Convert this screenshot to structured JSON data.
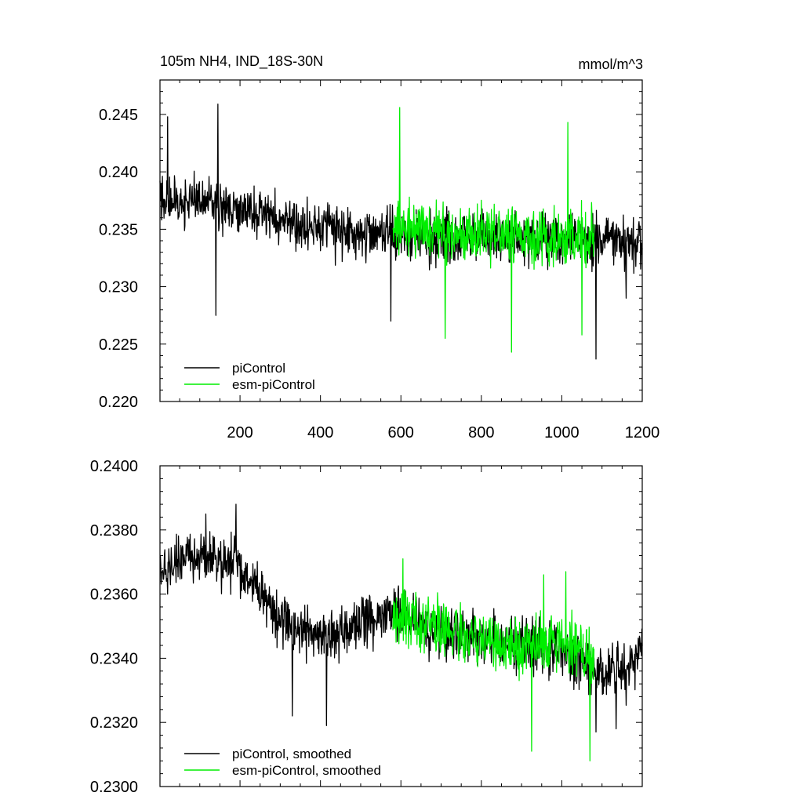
{
  "figure": {
    "title_left": "105m NH4, IND_18S-30N",
    "title_right": "mmol/m^3"
  },
  "colors": {
    "piControl": "#000000",
    "esm_piControl": "#00ee00",
    "frame": "#000000",
    "background": "#ffffff"
  },
  "chart_data": [
    {
      "type": "line",
      "title": "105m NH4, IND_18S-30N",
      "units": "mmol/m^3",
      "xlim": [
        1,
        1200
      ],
      "ylim": [
        0.22,
        0.248
      ],
      "xticks": [
        200,
        400,
        600,
        800,
        1000,
        1200
      ],
      "xtick_labels": [
        "200",
        "400",
        "600",
        "800",
        "1000",
        "1200"
      ],
      "yticks": [
        0.22,
        0.225,
        0.23,
        0.235,
        0.24,
        0.245
      ],
      "ytick_labels": [
        "0.220",
        "0.225",
        "0.230",
        "0.235",
        "0.240",
        "0.245"
      ],
      "grid": false,
      "legend_position": "bottom-left",
      "legend": [
        "piControl",
        "esm-piControl"
      ],
      "series": [
        {
          "name": "piControl",
          "color": "#000000",
          "x_range": [
            1,
            1200
          ],
          "noise_amplitude": 0.0032,
          "trend": [
            [
              1,
              0.2375
            ],
            [
              150,
              0.2372
            ],
            [
              300,
              0.2358
            ],
            [
              450,
              0.2348
            ],
            [
              580,
              0.2345
            ],
            [
              800,
              0.2342
            ],
            [
              1000,
              0.234
            ],
            [
              1200,
              0.2338
            ]
          ],
          "extremes": [
            [
              145,
              0.2459
            ],
            [
              20,
              0.2448
            ],
            [
              140,
              0.2275
            ],
            [
              575,
              0.227
            ],
            [
              1085,
              0.2237
            ],
            [
              1160,
              0.229
            ]
          ]
        },
        {
          "name": "esm-piControl",
          "color": "#00ee00",
          "x_range": [
            580,
            1080
          ],
          "noise_amplitude": 0.0036,
          "trend": [
            [
              580,
              0.235
            ],
            [
              800,
              0.2345
            ],
            [
              1080,
              0.2342
            ]
          ],
          "extremes": [
            [
              597,
              0.2456
            ],
            [
              1015,
              0.2443
            ],
            [
              875,
              0.2243
            ],
            [
              710,
              0.2255
            ],
            [
              1050,
              0.2258
            ]
          ]
        }
      ]
    },
    {
      "type": "line",
      "title": "",
      "xlim": [
        1,
        1200
      ],
      "ylim": [
        0.23,
        0.24
      ],
      "xticks": [
        200,
        400,
        600,
        800,
        1000,
        1200
      ],
      "yticks": [
        0.23,
        0.232,
        0.234,
        0.236,
        0.238,
        0.24
      ],
      "ytick_labels": [
        "0.2300",
        "0.2320",
        "0.2340",
        "0.2360",
        "0.2380",
        "0.2400"
      ],
      "grid": false,
      "legend_position": "bottom-left",
      "legend": [
        "piControl, smoothed",
        "esm-piControl, smoothed"
      ],
      "series": [
        {
          "name": "piControl, smoothed",
          "color": "#000000",
          "x_range": [
            1,
            1200
          ],
          "noise_amplitude": 0.0012,
          "trend": [
            [
              1,
              0.2368
            ],
            [
              30,
              0.237
            ],
            [
              100,
              0.2372
            ],
            [
              190,
              0.237
            ],
            [
              250,
              0.236
            ],
            [
              300,
              0.2352
            ],
            [
              400,
              0.2347
            ],
            [
              500,
              0.235
            ],
            [
              580,
              0.2355
            ],
            [
              640,
              0.235
            ],
            [
              700,
              0.2348
            ],
            [
              800,
              0.2346
            ],
            [
              900,
              0.2345
            ],
            [
              1000,
              0.2342
            ],
            [
              1100,
              0.2335
            ],
            [
              1160,
              0.2335
            ],
            [
              1200,
              0.2345
            ]
          ],
          "extremes": [
            [
              190,
              0.2388
            ],
            [
              115,
              0.2385
            ],
            [
              330,
              0.2322
            ],
            [
              415,
              0.2319
            ],
            [
              1085,
              0.2317
            ],
            [
              1135,
              0.2318
            ],
            [
              20,
              0.236
            ]
          ]
        },
        {
          "name": "esm-piControl, smoothed",
          "color": "#00ee00",
          "x_range": [
            580,
            1080
          ],
          "noise_amplitude": 0.0013,
          "trend": [
            [
              580,
              0.2352
            ],
            [
              700,
              0.235
            ],
            [
              850,
              0.2343
            ],
            [
              1000,
              0.2345
            ],
            [
              1080,
              0.234
            ]
          ],
          "extremes": [
            [
              605,
              0.2371
            ],
            [
              955,
              0.2366
            ],
            [
              1010,
              0.2367
            ],
            [
              925,
              0.2311
            ],
            [
              1070,
              0.2308
            ]
          ]
        }
      ]
    }
  ]
}
